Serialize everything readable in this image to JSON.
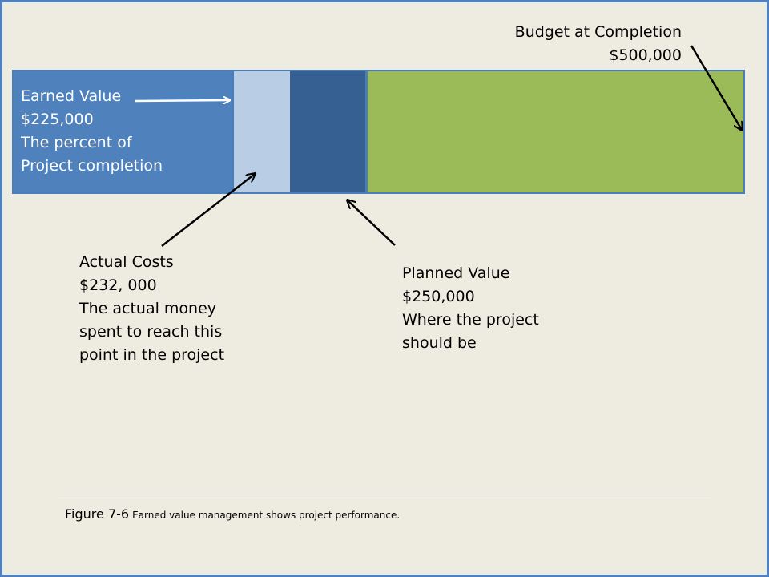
{
  "earned_value": {
    "lines": [
      "Earned Value",
      "$225,000",
      "The percent of",
      "Project completion"
    ]
  },
  "budget_at_completion": {
    "lines": [
      "Budget at Completion",
      "$500,000"
    ]
  },
  "actual_costs": {
    "lines": [
      "Actual Costs",
      "$232, 000",
      "The actual money",
      "spent to reach this",
      "point in the project"
    ]
  },
  "planned_value": {
    "lines": [
      "Planned Value",
      "$250,000",
      "Where the project",
      "should be"
    ]
  },
  "caption": {
    "number": "Figure 7-6",
    "text": "Earned value management shows project performance."
  },
  "colors": {
    "earned_value": "#4f81bd",
    "actual_costs": "#b9cde5",
    "planned_value": "#376092",
    "remaining": "#9bbb59",
    "background": "#eeece1"
  }
}
